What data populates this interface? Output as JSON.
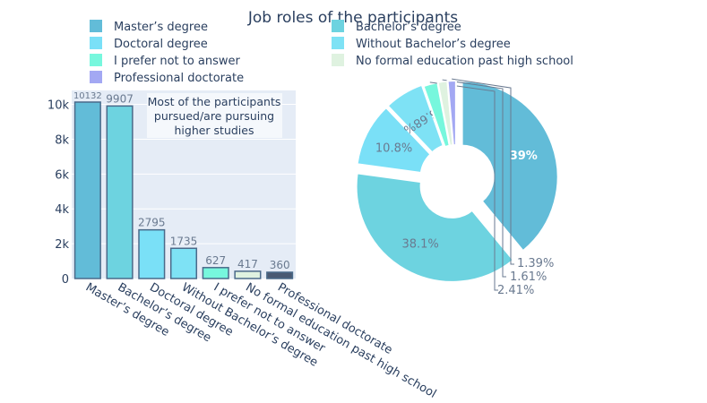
{
  "title": "Job roles of the participants",
  "annotation": [
    "Most of the participants",
    "pursued/are pursuing",
    "higher studies"
  ],
  "legend": {
    "placement": "top",
    "items": [
      {
        "label": "Master’s degree",
        "color": "#62bcd8"
      },
      {
        "label": "Bachelor’s degree",
        "color": "#6dd3e0"
      },
      {
        "label": "Doctoral degree",
        "color": "#7ae0f7"
      },
      {
        "label": "Without Bachelor’s degree",
        "color": "#7ee2f5"
      },
      {
        "label": "I prefer not to answer",
        "color": "#77f7dd"
      },
      {
        "label": "No formal education past high school",
        "color": "#dff2e0"
      },
      {
        "label": "Professional doctorate",
        "color": "#a3a8f3"
      }
    ]
  },
  "chart_data": [
    {
      "type": "bar",
      "categories": [
        "Master’s degree",
        "Bachelor’s degree",
        "Doctoral degree",
        "Without Bachelor’s degree",
        "I prefer not to answer",
        "No formal education past high school",
        "Professional doctorate"
      ],
      "values": [
        10132,
        9907,
        2795,
        1735,
        627,
        417,
        360
      ],
      "data_labels": [
        "10132",
        "9907",
        "2795",
        "1735",
        "627",
        "417",
        "360"
      ],
      "colors": [
        "#62bcd8",
        "#6dd3e0",
        "#7ae0f7",
        "#7ee2f5",
        "#77f7dd",
        "#dff2e0",
        "#4a5a73"
      ],
      "ylim": [
        0,
        10800
      ],
      "yticks": [
        0,
        2000,
        4000,
        6000,
        8000,
        10000
      ],
      "ytick_labels": [
        "0",
        "2k",
        "4k",
        "6k",
        "8k",
        "10k"
      ],
      "grid": true
    },
    {
      "type": "pie",
      "hole": true,
      "labels": [
        "Master’s degree",
        "Bachelor’s degree",
        "Doctoral degree",
        "Without Bachelor’s degree",
        "I prefer not to answer",
        "No formal education past high school",
        "Professional doctorate"
      ],
      "values": [
        10132,
        9907,
        2795,
        1735,
        627,
        417,
        360
      ],
      "percent_labels": [
        "39%",
        "38.1%",
        "10.8%",
        "6.68%",
        "2.41%",
        "1.61%",
        "1.39%"
      ],
      "colors": [
        "#62bcd8",
        "#6dd3e0",
        "#7ae0f7",
        "#7ee2f5",
        "#77f7dd",
        "#dff2e0",
        "#a3a8f3"
      ]
    }
  ]
}
